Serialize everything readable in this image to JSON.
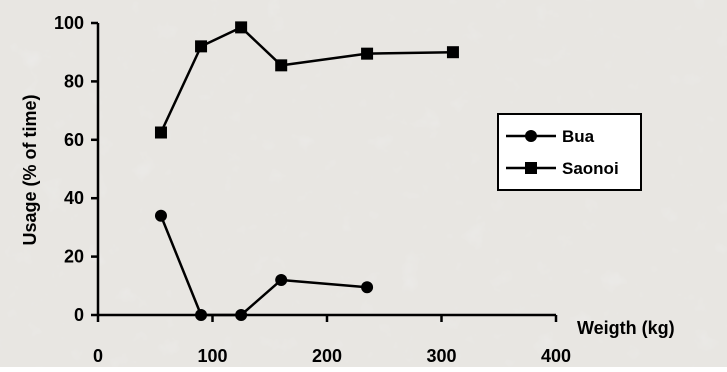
{
  "chart_data": {
    "type": "line",
    "title": "",
    "xlabel": "Weigth (kg)",
    "ylabel": "Usage (% of time)",
    "xlim": [
      0,
      400
    ],
    "ylim": [
      0,
      100
    ],
    "x_ticks": [
      0,
      100,
      200,
      300,
      400
    ],
    "y_ticks": [
      0,
      20,
      40,
      60,
      80,
      100
    ],
    "grid": false,
    "legend_position": "right",
    "background": "textured light gray",
    "series": [
      {
        "name": "Bua",
        "marker": "circle",
        "color": "#000000",
        "points": [
          {
            "x": 55,
            "y": 34
          },
          {
            "x": 90,
            "y": 0
          },
          {
            "x": 125,
            "y": 0
          },
          {
            "x": 160,
            "y": 12
          },
          {
            "x": 235,
            "y": 9.5
          }
        ]
      },
      {
        "name": "Saonoi",
        "marker": "square",
        "color": "#000000",
        "points": [
          {
            "x": 55,
            "y": 62.5
          },
          {
            "x": 90,
            "y": 92
          },
          {
            "x": 125,
            "y": 98.5
          },
          {
            "x": 160,
            "y": 85.5
          },
          {
            "x": 235,
            "y": 89.5
          },
          {
            "x": 310,
            "y": 90
          }
        ]
      }
    ]
  }
}
